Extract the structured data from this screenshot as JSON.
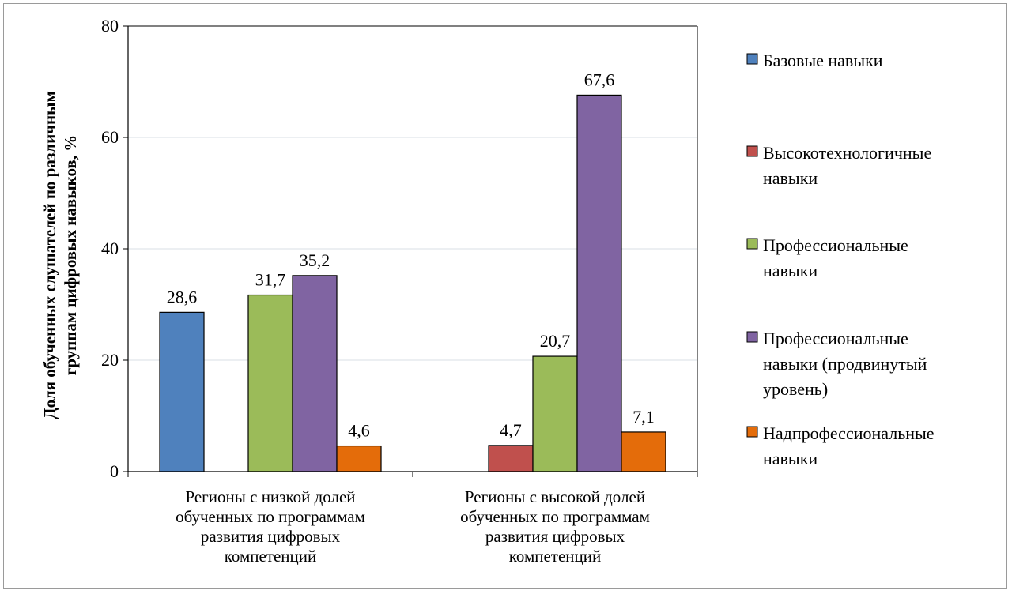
{
  "chart_data": {
    "type": "bar",
    "categories": [
      [
        "Регионы с низкой долей",
        "обученных по программам",
        "развития цифровых",
        "компетенций"
      ],
      [
        "Регионы с высокой долей",
        "обученных по программам",
        "развития цифровых",
        "компетенций"
      ]
    ],
    "ylabel": [
      "Доля обученных слушателей по различным",
      "группам цифровых навыков, %"
    ],
    "xlabel": "",
    "ylim": [
      0,
      80
    ],
    "yticks": [
      "0",
      "20",
      "40",
      "60",
      "80"
    ],
    "grid": true,
    "legend_position": "right",
    "series": [
      {
        "name": [
          "Базовые навыки"
        ],
        "color": "#4f81bd",
        "values": [
          28.6,
          null
        ],
        "labels": [
          "28,6",
          ""
        ]
      },
      {
        "name": [
          "Высокотехнологичные",
          "навыки"
        ],
        "color": "#c0504d",
        "values": [
          null,
          4.7
        ],
        "labels": [
          "",
          "4,7"
        ]
      },
      {
        "name": [
          "Профессиональные",
          "навыки"
        ],
        "color": "#9bbb59",
        "values": [
          31.7,
          20.7
        ],
        "labels": [
          "31,7",
          "20,7"
        ]
      },
      {
        "name": [
          "Профессиональные",
          "навыки (продвинутый",
          "уровень)"
        ],
        "color": "#8064a2",
        "values": [
          35.2,
          67.6
        ],
        "labels": [
          "35,2",
          "67,6"
        ]
      },
      {
        "name": [
          "Надпрофессиональные",
          "навыки"
        ],
        "color": "#e46c0a",
        "values": [
          4.6,
          7.1
        ],
        "labels": [
          "4,6",
          "7,1"
        ]
      }
    ]
  }
}
